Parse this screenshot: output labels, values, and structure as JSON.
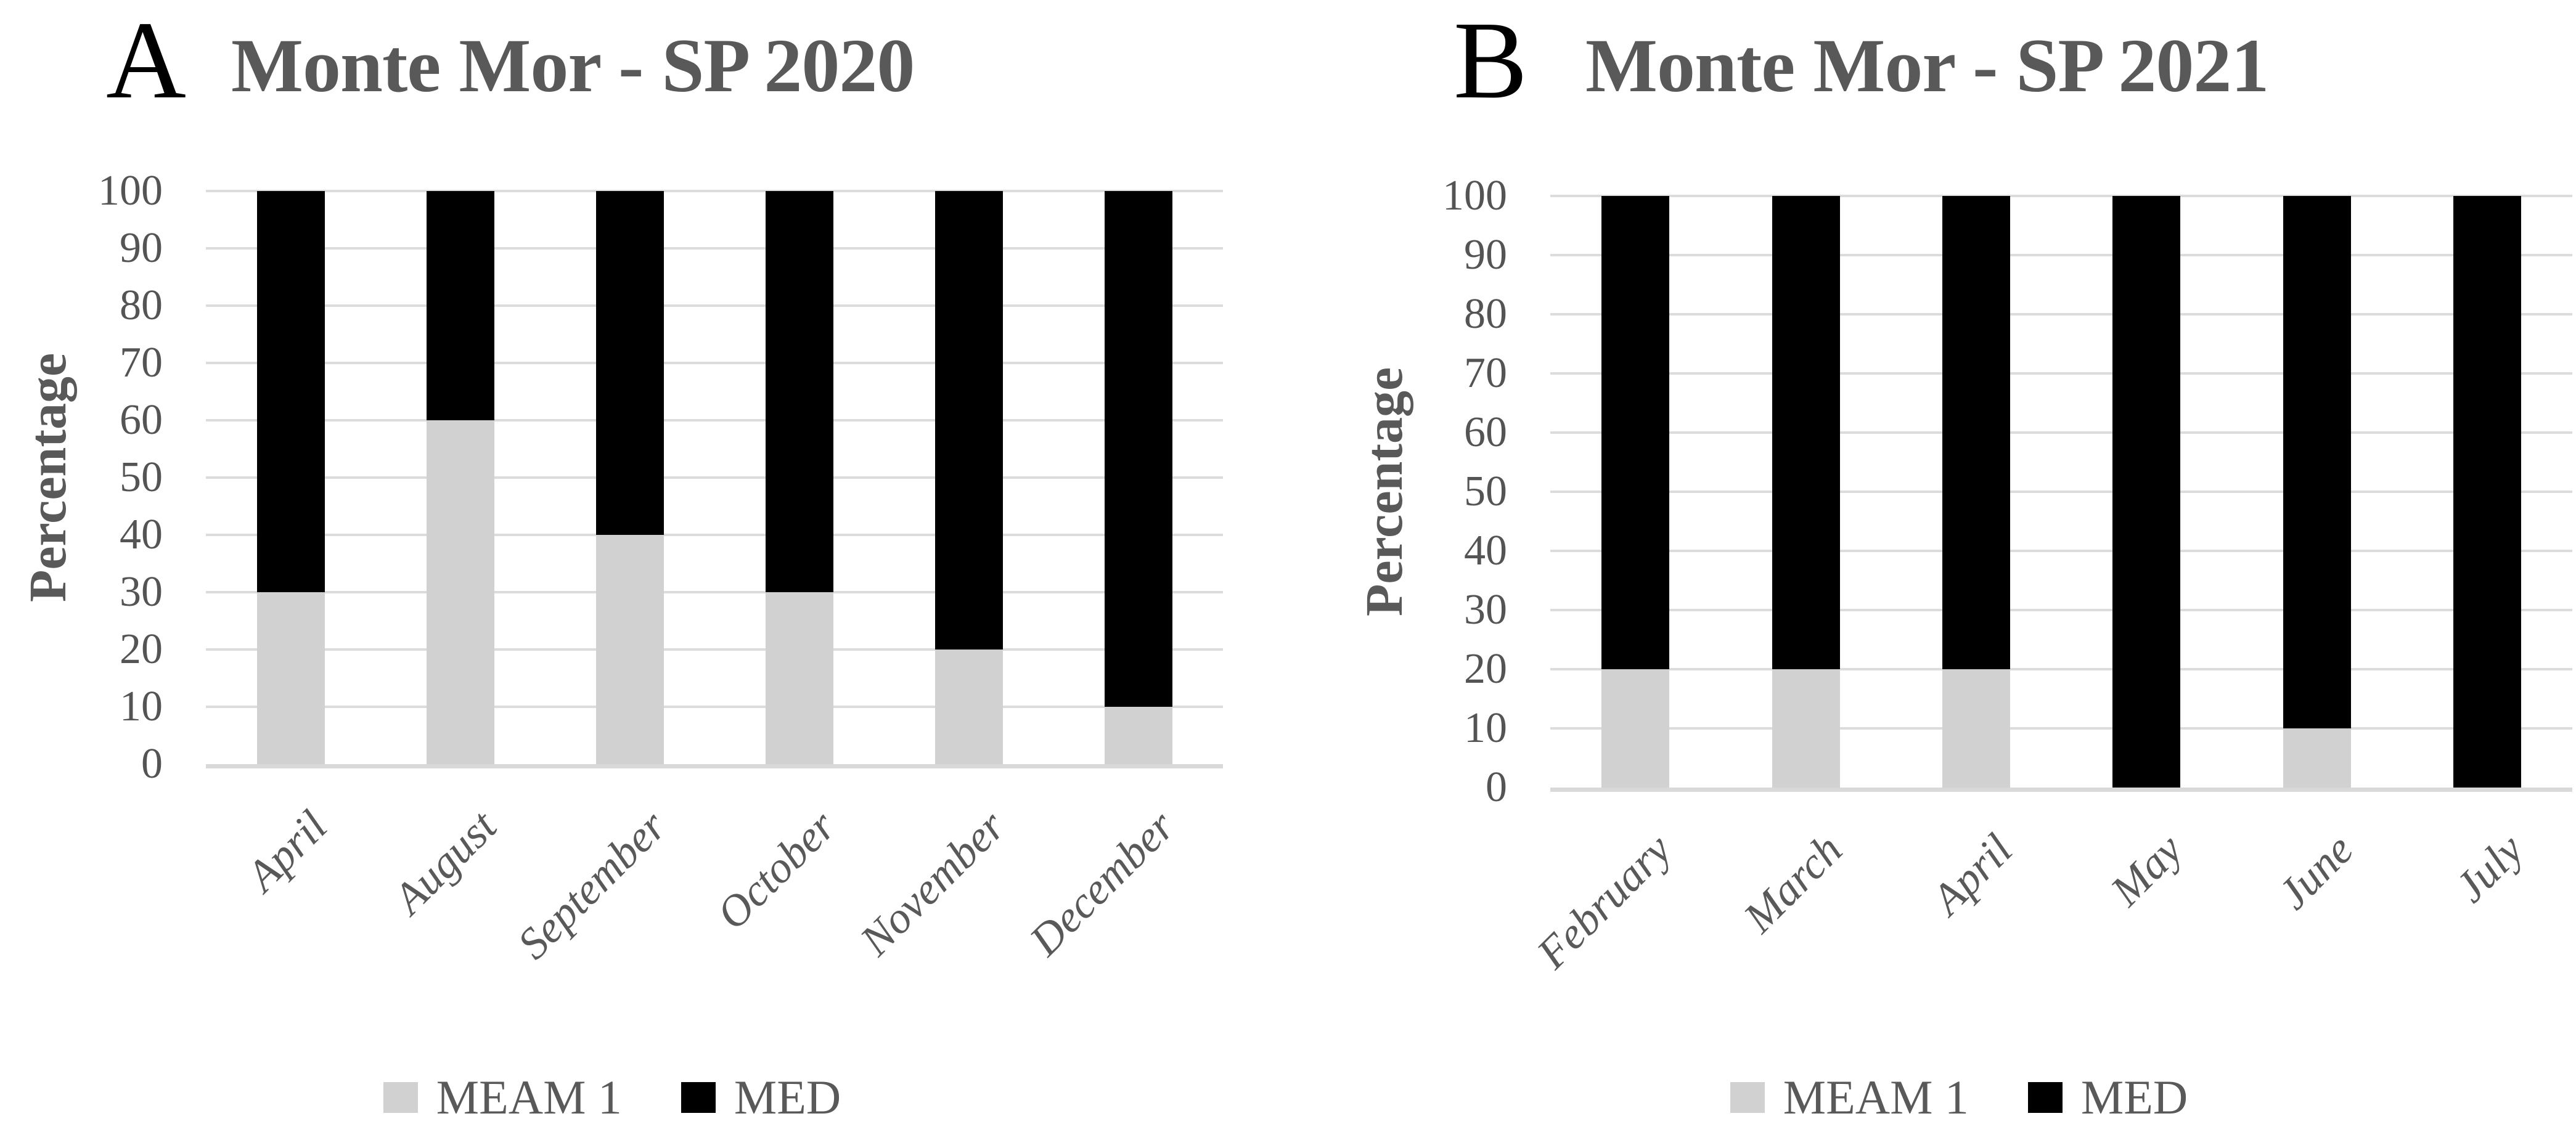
{
  "colors": {
    "text": "#595959",
    "tick_text": "#545454",
    "gridline": "#dcdcdc",
    "axis_line": "#d9d9d9",
    "panel_letter": "#000000",
    "meam1_gray": "#d1d1d1",
    "med_black": "#000000"
  },
  "legend": {
    "meam1_label": "MEAM 1",
    "med_label": "MED"
  },
  "panels": [
    {
      "letter": "A",
      "chart_data": {
        "type": "bar",
        "stacked": true,
        "title": "Monte Mor - SP 2020",
        "xlabel": "",
        "ylabel": "Percentage",
        "categories": [
          "April",
          "August",
          "September",
          "October",
          "November",
          "December"
        ],
        "series": [
          {
            "name": "MEAM 1",
            "color": "#d1d1d1",
            "values": [
              30,
              60,
              40,
              30,
              20,
              10
            ]
          },
          {
            "name": "MED",
            "color": "#000000",
            "values": [
              70,
              40,
              60,
              70,
              80,
              90
            ]
          }
        ],
        "ylim": [
          0,
          100
        ],
        "ytick_step": 10,
        "grid": true,
        "legend_position": "bottom",
        "xlabel_rotation_deg": 45
      }
    },
    {
      "letter": "B",
      "chart_data": {
        "type": "bar",
        "stacked": true,
        "title": "Monte Mor - SP 2021",
        "xlabel": "",
        "ylabel": "Percentage",
        "categories": [
          "February",
          "March",
          "April",
          "May",
          "June",
          "July"
        ],
        "series": [
          {
            "name": "MEAM 1",
            "color": "#d1d1d1",
            "values": [
              20,
              20,
              20,
              0,
              10,
              0
            ]
          },
          {
            "name": "MED",
            "color": "#000000",
            "values": [
              80,
              80,
              80,
              100,
              90,
              100
            ]
          }
        ],
        "ylim": [
          0,
          100
        ],
        "ytick_step": 10,
        "grid": true,
        "legend_position": "bottom",
        "xlabel_rotation_deg": 45
      }
    }
  ]
}
